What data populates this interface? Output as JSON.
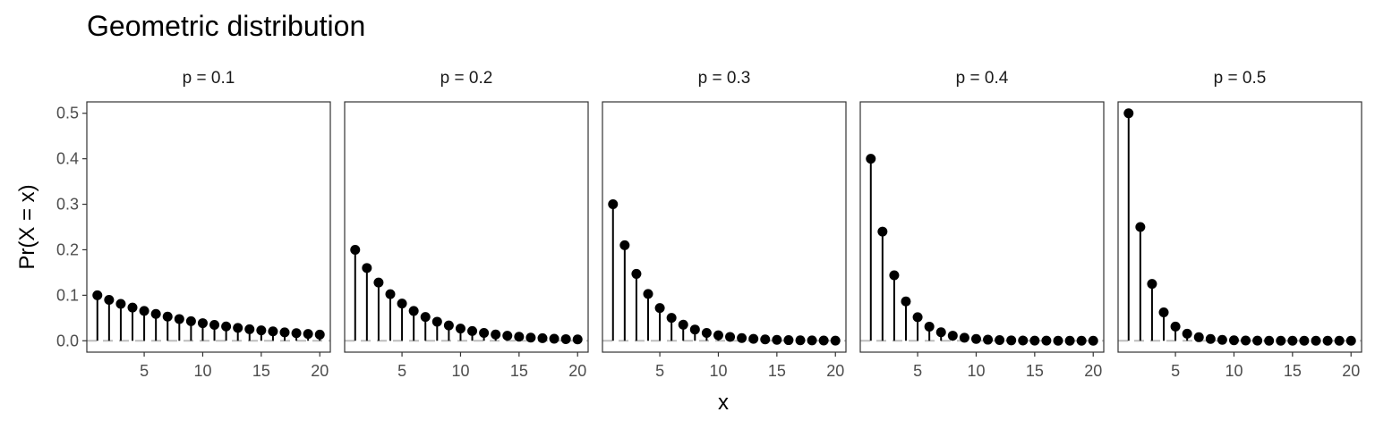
{
  "chart_data": {
    "type": "lollipop",
    "title": "Geometric distribution",
    "xlabel": "x",
    "ylabel": "Pr(X = x)",
    "x": [
      1,
      2,
      3,
      4,
      5,
      6,
      7,
      8,
      9,
      10,
      11,
      12,
      13,
      14,
      15,
      16,
      17,
      18,
      19,
      20
    ],
    "xlim": [
      0.1,
      20.9
    ],
    "ylim": [
      -0.025,
      0.525
    ],
    "x_ticks": [
      5,
      10,
      15,
      20
    ],
    "y_ticks": [
      0.0,
      0.1,
      0.2,
      0.3,
      0.4,
      0.5
    ],
    "y_tick_labels": [
      "0.0",
      "0.1",
      "0.2",
      "0.3",
      "0.4",
      "0.5"
    ],
    "reference_line": {
      "y": 0,
      "style": "dashed",
      "color": "#bdbdbd"
    },
    "panels": [
      {
        "label": "p = 0.1",
        "p": 0.1,
        "values": [
          0.1,
          0.09,
          0.081,
          0.0729,
          0.0656,
          0.059,
          0.0531,
          0.0478,
          0.043,
          0.0387,
          0.0349,
          0.0314,
          0.0282,
          0.0254,
          0.0229,
          0.0206,
          0.0185,
          0.0167,
          0.015,
          0.0135
        ]
      },
      {
        "label": "p = 0.2",
        "p": 0.2,
        "values": [
          0.2,
          0.16,
          0.128,
          0.1024,
          0.0819,
          0.0655,
          0.0524,
          0.0419,
          0.0336,
          0.0268,
          0.0215,
          0.0172,
          0.0137,
          0.011,
          0.0088,
          0.007,
          0.0056,
          0.0045,
          0.0036,
          0.0029
        ]
      },
      {
        "label": "p = 0.3",
        "p": 0.3,
        "values": [
          0.3,
          0.21,
          0.147,
          0.1029,
          0.072,
          0.0504,
          0.0353,
          0.0247,
          0.0173,
          0.0121,
          0.0085,
          0.0059,
          0.0042,
          0.0029,
          0.002,
          0.0014,
          0.001,
          0.0007,
          0.0005,
          0.0003
        ]
      },
      {
        "label": "p = 0.4",
        "p": 0.4,
        "values": [
          0.4,
          0.24,
          0.144,
          0.0864,
          0.0518,
          0.0311,
          0.0187,
          0.0112,
          0.0067,
          0.004,
          0.0024,
          0.0015,
          0.0009,
          0.0005,
          0.0003,
          0.0002,
          0.0001,
          0.0001,
          0.0,
          0.0
        ]
      },
      {
        "label": "p = 0.5",
        "p": 0.5,
        "values": [
          0.5,
          0.25,
          0.125,
          0.0625,
          0.0313,
          0.0156,
          0.0078,
          0.0039,
          0.002,
          0.001,
          0.0005,
          0.0002,
          0.0001,
          0.0001,
          0.0,
          0.0,
          0.0,
          0.0,
          0.0,
          0.0
        ]
      }
    ],
    "colors": {
      "points": "#000000",
      "stems": "#000000",
      "panel_border": "#333333",
      "reference": "#bdbdbd"
    },
    "grid": false,
    "legend": "none"
  }
}
